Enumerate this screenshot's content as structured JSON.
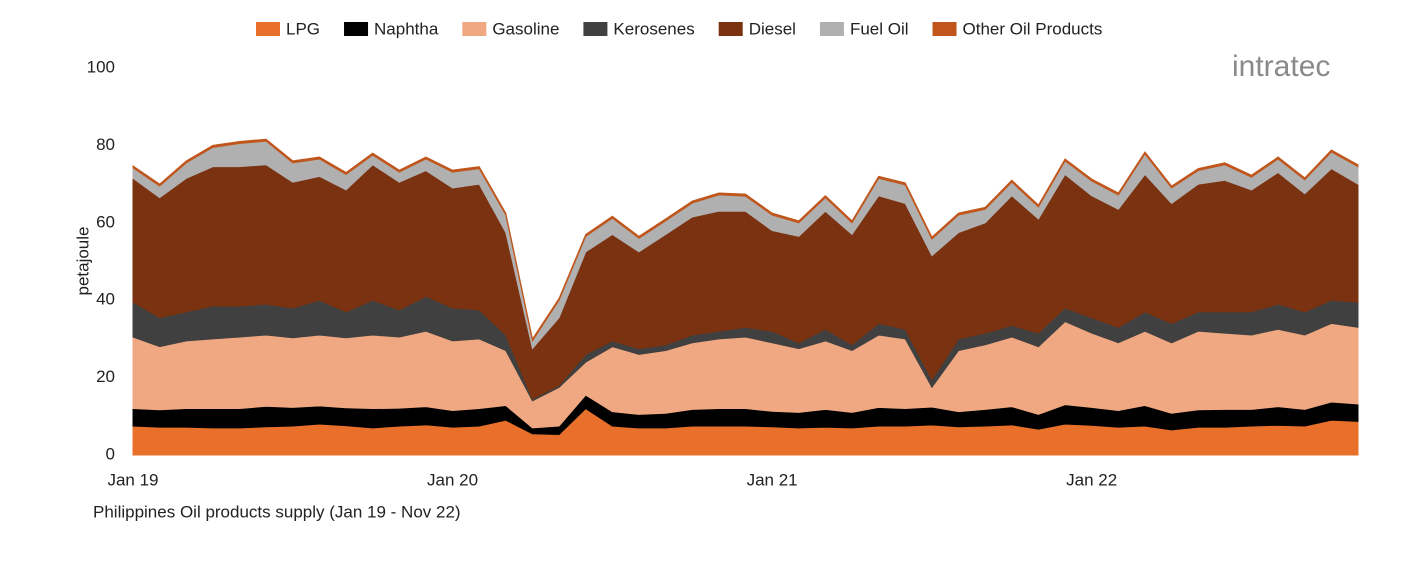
{
  "chart_data": {
    "type": "stacked_area",
    "categories": [
      "Jan 19",
      null,
      null,
      null,
      null,
      null,
      null,
      null,
      null,
      null,
      null,
      null,
      "Jan 20",
      null,
      null,
      null,
      null,
      null,
      null,
      null,
      null,
      null,
      null,
      null,
      "Jan 21",
      null,
      null,
      null,
      null,
      null,
      null,
      null,
      null,
      null,
      null,
      null,
      "Jan 22",
      null,
      null,
      null,
      null,
      null,
      null,
      null,
      null,
      null,
      null
    ],
    "y_label": "petajoule",
    "caption": "Philippines Oil products supply (Jan 19 - Nov 22)",
    "logo_text": "intratec",
    "ylim": [
      0,
      100
    ],
    "yticks": [
      0,
      20,
      40,
      60,
      80,
      100
    ],
    "grid": false,
    "legend": "top",
    "series": [
      {
        "name": "LPG",
        "color": "#e8702a",
        "values": [
          7.5,
          7.2,
          7.2,
          7,
          7,
          7.3,
          7.5,
          8,
          7.6,
          7,
          7.5,
          7.8,
          7.2,
          7.5,
          9,
          5.5,
          5.3,
          12,
          7.5,
          7,
          7,
          7.5,
          7.5,
          7.5,
          7.3,
          7,
          7.2,
          7,
          7.5,
          7.5,
          7.8,
          7.3,
          7.5,
          7.8,
          6.7,
          8,
          7.7,
          7.2,
          7.5,
          6.5,
          7.2,
          7.2,
          7.5,
          7.7,
          7.5,
          9,
          8.7
        ]
      },
      {
        "name": "Naphtha",
        "color": "#000000",
        "values": [
          4.5,
          4.5,
          4.8,
          5,
          5,
          5.3,
          4.8,
          4.7,
          4.6,
          5,
          4.6,
          4.7,
          4.3,
          4.5,
          3.8,
          1.5,
          2.2,
          3.5,
          3.7,
          3.5,
          3.8,
          4.3,
          4.5,
          4.5,
          4,
          4,
          4.6,
          4,
          4.8,
          4.5,
          4.6,
          3.9,
          4.3,
          4.7,
          3.8,
          5,
          4.6,
          4.3,
          5.3,
          4.3,
          4.5,
          4.6,
          4.3,
          4.8,
          4.3,
          4.7,
          4.5
        ]
      },
      {
        "name": "Gasoline",
        "color": "#f0a882",
        "values": [
          18.5,
          16.3,
          17.5,
          18,
          18.5,
          18.4,
          18,
          18.3,
          18.1,
          19,
          18.4,
          19.5,
          18,
          18,
          14.2,
          7,
          10,
          8.5,
          16.8,
          15.5,
          16.2,
          17.2,
          18,
          18.5,
          17.7,
          16.5,
          17.7,
          16,
          18.7,
          18,
          5.1,
          15.8,
          16.7,
          18,
          17.5,
          21.5,
          19.2,
          17.5,
          19.2,
          18.2,
          20.3,
          19.7,
          19.2,
          20,
          19.2,
          20.3,
          19.8
        ]
      },
      {
        "name": "Kerosenes",
        "color": "#404040",
        "values": [
          9,
          7.5,
          7.5,
          8.5,
          8,
          8,
          7.7,
          9,
          6.7,
          9,
          7,
          9,
          8.5,
          7.5,
          4,
          0.5,
          0.5,
          2,
          1.5,
          1.5,
          1.5,
          2,
          2,
          2.5,
          3,
          1.5,
          3,
          1.5,
          3,
          2.5,
          2,
          3,
          3,
          3,
          3.5,
          3.5,
          4,
          4,
          5,
          5,
          5,
          5.5,
          6,
          6.5,
          6,
          6,
          6.5
        ]
      },
      {
        "name": "Diesel",
        "color": "#7a3210",
        "values": [
          32,
          31,
          34.5,
          36,
          36,
          36,
          32.5,
          32,
          31.5,
          35,
          33,
          32.5,
          31,
          32.5,
          26.5,
          13,
          17.5,
          26.5,
          27.5,
          25,
          28.5,
          30.5,
          31,
          30,
          26,
          27.5,
          30.5,
          28.5,
          33,
          32.5,
          32,
          27.5,
          28.5,
          33.5,
          29.5,
          34.5,
          31.5,
          30.5,
          35.5,
          31,
          33,
          34,
          31.5,
          34,
          30.5,
          34,
          30.5
        ]
      },
      {
        "name": "Fuel Oil",
        "color": "#b0b0b0",
        "values": [
          2.7,
          3,
          4,
          5,
          6,
          6.1,
          5,
          4.5,
          4,
          2.5,
          2.6,
          3,
          4.1,
          4,
          4.5,
          2,
          4.5,
          4,
          4.2,
          3.5,
          3.5,
          3.6,
          4.2,
          3.9,
          4,
          3.5,
          3.5,
          3,
          4.5,
          4.8,
          4.3,
          4.5,
          3.5,
          3.5,
          3.1,
          3.5,
          3.8,
          3.7,
          5.3,
          4,
          3.5,
          4,
          3.3,
          3.5,
          3.6,
          4.3,
          4.5
        ]
      },
      {
        "name": "Other Oil Products",
        "color": "#c0561c",
        "values": [
          0.5,
          0.5,
          0.5,
          0.5,
          0.5,
          0.5,
          0.5,
          0.5,
          0.5,
          0.5,
          0.5,
          0.5,
          0.5,
          0.5,
          0.5,
          0.5,
          0.5,
          0.5,
          0.5,
          0.5,
          0.5,
          0.5,
          0.5,
          0.5,
          0.5,
          0.5,
          0.5,
          0.5,
          0.5,
          0.5,
          0.5,
          0.5,
          0.5,
          0.5,
          0.5,
          0.5,
          0.5,
          0.5,
          0.5,
          0.5,
          0.5,
          0.5,
          0.5,
          0.5,
          0.5,
          0.5,
          0.5
        ]
      }
    ]
  }
}
